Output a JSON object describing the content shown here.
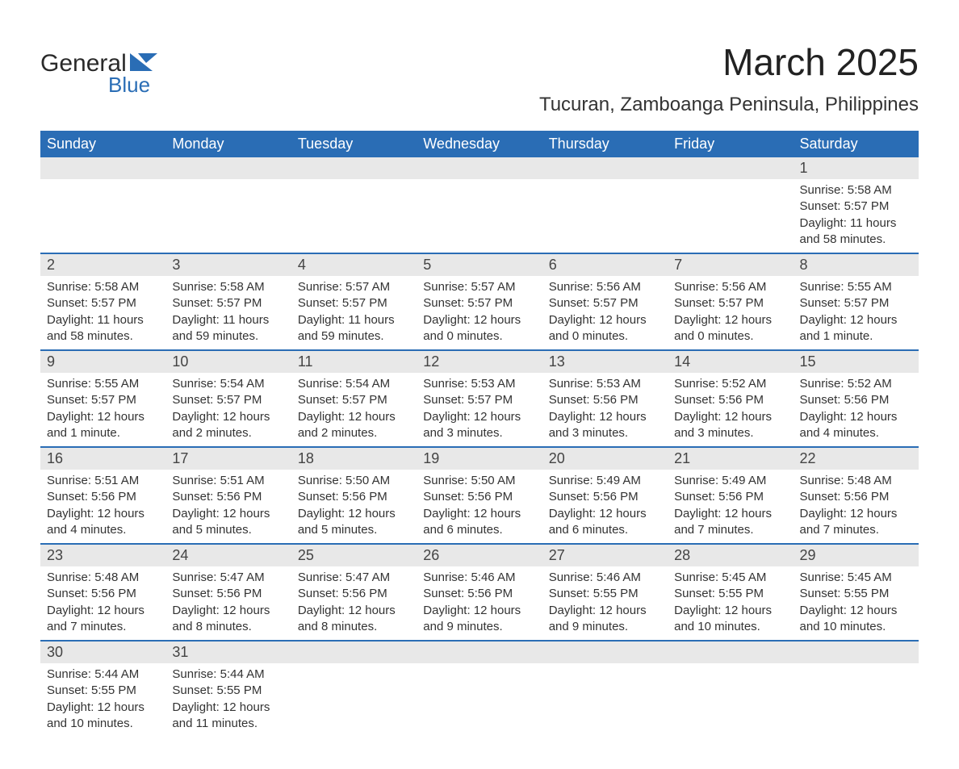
{
  "logo": {
    "top": "General",
    "bottom": "Blue",
    "shape_color": "#2a6db5"
  },
  "title": "March 2025",
  "location": "Tucuran, Zamboanga Peninsula, Philippines",
  "colors": {
    "header_bg": "#2a6db5",
    "header_fg": "#ffffff",
    "daynum_bg": "#e8e8e8",
    "row_border": "#2a6db5",
    "text": "#333333",
    "bg": "#ffffff"
  },
  "typography": {
    "title_fontsize": 46,
    "location_fontsize": 24,
    "header_fontsize": 18,
    "daynum_fontsize": 18,
    "detail_fontsize": 15
  },
  "day_headers": [
    "Sunday",
    "Monday",
    "Tuesday",
    "Wednesday",
    "Thursday",
    "Friday",
    "Saturday"
  ],
  "weeks": [
    [
      null,
      null,
      null,
      null,
      null,
      null,
      {
        "n": "1",
        "sunrise": "Sunrise: 5:58 AM",
        "sunset": "Sunset: 5:57 PM",
        "dl1": "Daylight: 11 hours",
        "dl2": "and 58 minutes."
      }
    ],
    [
      {
        "n": "2",
        "sunrise": "Sunrise: 5:58 AM",
        "sunset": "Sunset: 5:57 PM",
        "dl1": "Daylight: 11 hours",
        "dl2": "and 58 minutes."
      },
      {
        "n": "3",
        "sunrise": "Sunrise: 5:58 AM",
        "sunset": "Sunset: 5:57 PM",
        "dl1": "Daylight: 11 hours",
        "dl2": "and 59 minutes."
      },
      {
        "n": "4",
        "sunrise": "Sunrise: 5:57 AM",
        "sunset": "Sunset: 5:57 PM",
        "dl1": "Daylight: 11 hours",
        "dl2": "and 59 minutes."
      },
      {
        "n": "5",
        "sunrise": "Sunrise: 5:57 AM",
        "sunset": "Sunset: 5:57 PM",
        "dl1": "Daylight: 12 hours",
        "dl2": "and 0 minutes."
      },
      {
        "n": "6",
        "sunrise": "Sunrise: 5:56 AM",
        "sunset": "Sunset: 5:57 PM",
        "dl1": "Daylight: 12 hours",
        "dl2": "and 0 minutes."
      },
      {
        "n": "7",
        "sunrise": "Sunrise: 5:56 AM",
        "sunset": "Sunset: 5:57 PM",
        "dl1": "Daylight: 12 hours",
        "dl2": "and 0 minutes."
      },
      {
        "n": "8",
        "sunrise": "Sunrise: 5:55 AM",
        "sunset": "Sunset: 5:57 PM",
        "dl1": "Daylight: 12 hours",
        "dl2": "and 1 minute."
      }
    ],
    [
      {
        "n": "9",
        "sunrise": "Sunrise: 5:55 AM",
        "sunset": "Sunset: 5:57 PM",
        "dl1": "Daylight: 12 hours",
        "dl2": "and 1 minute."
      },
      {
        "n": "10",
        "sunrise": "Sunrise: 5:54 AM",
        "sunset": "Sunset: 5:57 PM",
        "dl1": "Daylight: 12 hours",
        "dl2": "and 2 minutes."
      },
      {
        "n": "11",
        "sunrise": "Sunrise: 5:54 AM",
        "sunset": "Sunset: 5:57 PM",
        "dl1": "Daylight: 12 hours",
        "dl2": "and 2 minutes."
      },
      {
        "n": "12",
        "sunrise": "Sunrise: 5:53 AM",
        "sunset": "Sunset: 5:57 PM",
        "dl1": "Daylight: 12 hours",
        "dl2": "and 3 minutes."
      },
      {
        "n": "13",
        "sunrise": "Sunrise: 5:53 AM",
        "sunset": "Sunset: 5:56 PM",
        "dl1": "Daylight: 12 hours",
        "dl2": "and 3 minutes."
      },
      {
        "n": "14",
        "sunrise": "Sunrise: 5:52 AM",
        "sunset": "Sunset: 5:56 PM",
        "dl1": "Daylight: 12 hours",
        "dl2": "and 3 minutes."
      },
      {
        "n": "15",
        "sunrise": "Sunrise: 5:52 AM",
        "sunset": "Sunset: 5:56 PM",
        "dl1": "Daylight: 12 hours",
        "dl2": "and 4 minutes."
      }
    ],
    [
      {
        "n": "16",
        "sunrise": "Sunrise: 5:51 AM",
        "sunset": "Sunset: 5:56 PM",
        "dl1": "Daylight: 12 hours",
        "dl2": "and 4 minutes."
      },
      {
        "n": "17",
        "sunrise": "Sunrise: 5:51 AM",
        "sunset": "Sunset: 5:56 PM",
        "dl1": "Daylight: 12 hours",
        "dl2": "and 5 minutes."
      },
      {
        "n": "18",
        "sunrise": "Sunrise: 5:50 AM",
        "sunset": "Sunset: 5:56 PM",
        "dl1": "Daylight: 12 hours",
        "dl2": "and 5 minutes."
      },
      {
        "n": "19",
        "sunrise": "Sunrise: 5:50 AM",
        "sunset": "Sunset: 5:56 PM",
        "dl1": "Daylight: 12 hours",
        "dl2": "and 6 minutes."
      },
      {
        "n": "20",
        "sunrise": "Sunrise: 5:49 AM",
        "sunset": "Sunset: 5:56 PM",
        "dl1": "Daylight: 12 hours",
        "dl2": "and 6 minutes."
      },
      {
        "n": "21",
        "sunrise": "Sunrise: 5:49 AM",
        "sunset": "Sunset: 5:56 PM",
        "dl1": "Daylight: 12 hours",
        "dl2": "and 7 minutes."
      },
      {
        "n": "22",
        "sunrise": "Sunrise: 5:48 AM",
        "sunset": "Sunset: 5:56 PM",
        "dl1": "Daylight: 12 hours",
        "dl2": "and 7 minutes."
      }
    ],
    [
      {
        "n": "23",
        "sunrise": "Sunrise: 5:48 AM",
        "sunset": "Sunset: 5:56 PM",
        "dl1": "Daylight: 12 hours",
        "dl2": "and 7 minutes."
      },
      {
        "n": "24",
        "sunrise": "Sunrise: 5:47 AM",
        "sunset": "Sunset: 5:56 PM",
        "dl1": "Daylight: 12 hours",
        "dl2": "and 8 minutes."
      },
      {
        "n": "25",
        "sunrise": "Sunrise: 5:47 AM",
        "sunset": "Sunset: 5:56 PM",
        "dl1": "Daylight: 12 hours",
        "dl2": "and 8 minutes."
      },
      {
        "n": "26",
        "sunrise": "Sunrise: 5:46 AM",
        "sunset": "Sunset: 5:56 PM",
        "dl1": "Daylight: 12 hours",
        "dl2": "and 9 minutes."
      },
      {
        "n": "27",
        "sunrise": "Sunrise: 5:46 AM",
        "sunset": "Sunset: 5:55 PM",
        "dl1": "Daylight: 12 hours",
        "dl2": "and 9 minutes."
      },
      {
        "n": "28",
        "sunrise": "Sunrise: 5:45 AM",
        "sunset": "Sunset: 5:55 PM",
        "dl1": "Daylight: 12 hours",
        "dl2": "and 10 minutes."
      },
      {
        "n": "29",
        "sunrise": "Sunrise: 5:45 AM",
        "sunset": "Sunset: 5:55 PM",
        "dl1": "Daylight: 12 hours",
        "dl2": "and 10 minutes."
      }
    ],
    [
      {
        "n": "30",
        "sunrise": "Sunrise: 5:44 AM",
        "sunset": "Sunset: 5:55 PM",
        "dl1": "Daylight: 12 hours",
        "dl2": "and 10 minutes."
      },
      {
        "n": "31",
        "sunrise": "Sunrise: 5:44 AM",
        "sunset": "Sunset: 5:55 PM",
        "dl1": "Daylight: 12 hours",
        "dl2": "and 11 minutes."
      },
      null,
      null,
      null,
      null,
      null
    ]
  ]
}
